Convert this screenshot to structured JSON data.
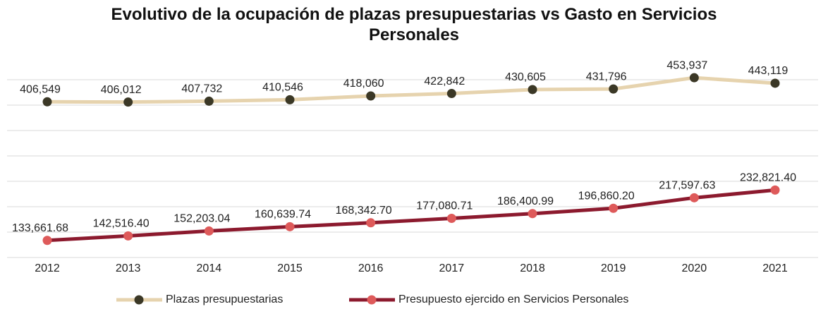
{
  "chart_data": {
    "type": "line",
    "title": "Evolutivo de la ocupación de plazas presupuestarias vs Gasto en Servicios Personales",
    "categories": [
      "2012",
      "2013",
      "2014",
      "2015",
      "2016",
      "2017",
      "2018",
      "2019",
      "2020",
      "2021"
    ],
    "series": [
      {
        "name": "Plazas presupuestarias",
        "color": "#e6d3ae",
        "marker_color": "#3b3826",
        "values": [
          406549,
          406012,
          407732,
          410546,
          418060,
          422842,
          430605,
          431796,
          453937,
          443119
        ],
        "value_labels": [
          "406,549",
          "406,012",
          "407,732",
          "410,546",
          "418,060",
          "422,842",
          "430,605",
          "431,796",
          "453,937",
          "443,119"
        ]
      },
      {
        "name": "Presupuesto ejercido en Servicios Personales",
        "color": "#8c1a2e",
        "marker_color": "#de5a5a",
        "values": [
          133661.68,
          142516.4,
          152203.04,
          160639.74,
          168342.7,
          177080.71,
          186400.99,
          196860.2,
          217597.63,
          232821.4
        ],
        "value_labels": [
          "133,661.68",
          "142,516.40",
          "152,203.04",
          "160,639.74",
          "168,342.70",
          "177,080.71",
          "186,400.99",
          "196,860.20",
          "217,597.63",
          "232,821.40"
        ]
      }
    ],
    "ylim": [
      100000,
      475000
    ],
    "yticks": [
      100000,
      150000,
      200000,
      250000,
      300000,
      350000,
      400000,
      450000
    ],
    "grid": true,
    "legend": "bottom"
  }
}
